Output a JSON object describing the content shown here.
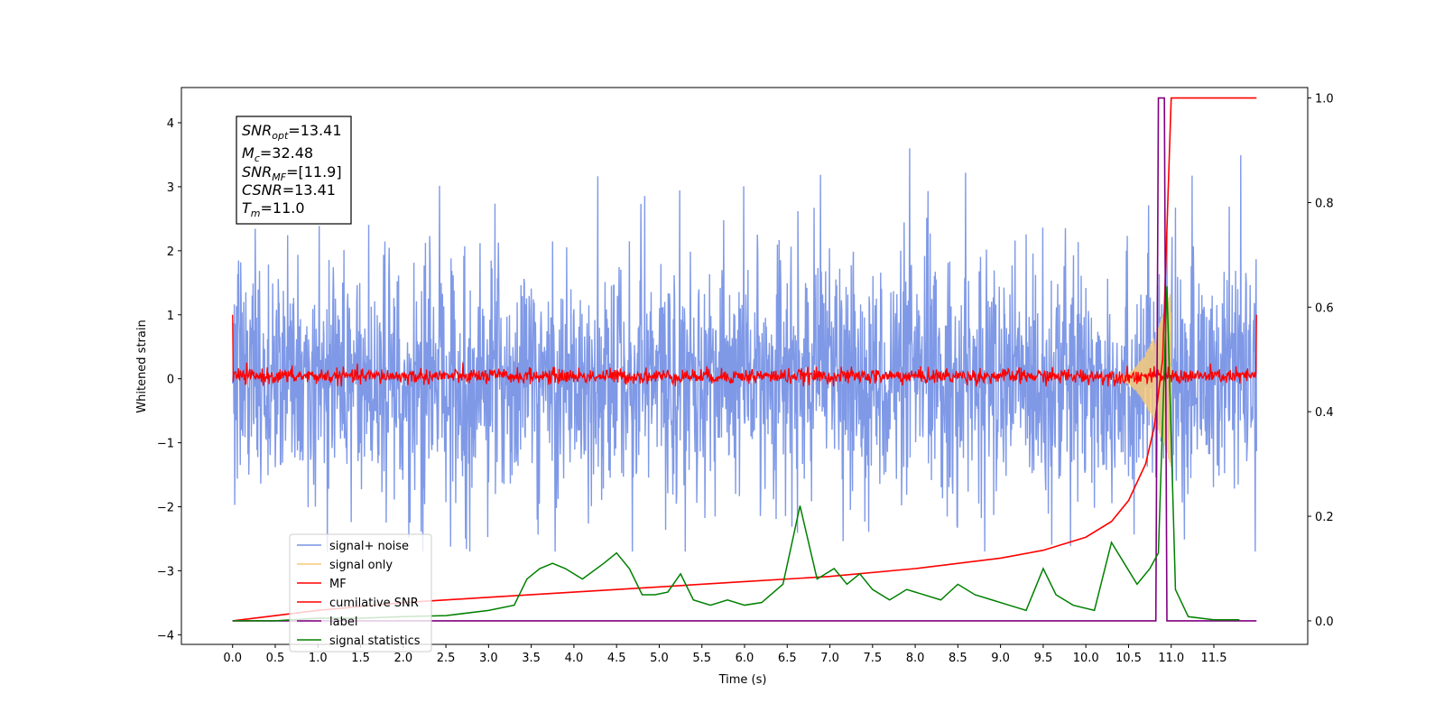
{
  "chart_data": {
    "type": "line",
    "title": "",
    "xlabel": "Time (s)",
    "ylabel": "Whitened strain",
    "xlim": [
      -0.6,
      12.6
    ],
    "ylim": [
      -4.15,
      4.55
    ],
    "y2lim": [
      -0.045,
      1.02
    ],
    "grid": false,
    "legend_position": "bottom-left",
    "x_ticks": [
      "0.0",
      "0.5",
      "1.0",
      "1.5",
      "2.0",
      "2.5",
      "3.0",
      "3.5",
      "4.0",
      "4.5",
      "5.0",
      "5.5",
      "6.0",
      "6.5",
      "7.0",
      "7.5",
      "8.0",
      "8.5",
      "9.0",
      "9.5",
      "10.0",
      "10.5",
      "11.0",
      "11.5"
    ],
    "y_ticks": [
      "4",
      "3",
      "2",
      "1",
      "0",
      "−1",
      "−2",
      "−3",
      "−4"
    ],
    "y2_ticks": [
      "1.0",
      "0.8",
      "0.6",
      "0.4",
      "0.2",
      "0.0"
    ],
    "y_tick_values": [
      4,
      3,
      2,
      1,
      0,
      -1,
      -2,
      -3,
      -4
    ],
    "y2_tick_values": [
      1.0,
      0.8,
      0.6,
      0.4,
      0.2,
      0.0
    ],
    "annotation": {
      "snr_opt": "=13.41",
      "mc": "=32.48",
      "snr_mf": "=[11.9]",
      "csnr": "=13.41",
      "tm": "=11.0"
    },
    "series": [
      {
        "name": "signal+ noise",
        "color": "#7893e6",
        "axis": "left",
        "t_range": [
          0.0,
          12.0
        ],
        "approx_envelope": [
          -2.7,
          3.6
        ]
      },
      {
        "name": "signal only",
        "color": "#f5c97a",
        "axis": "left",
        "t_range": [
          10.3,
          11.0
        ],
        "peak_amplitude": 1.4
      },
      {
        "name": "MF",
        "color": "#ff0000",
        "axis": "left",
        "t_range": [
          0.0,
          12.0
        ],
        "approx_envelope": [
          -0.1,
          0.2
        ]
      },
      {
        "name": "cumilative SNR",
        "color": "#ff0000",
        "axis": "right",
        "x": [
          0.0,
          1.0,
          2.0,
          3.0,
          4.0,
          5.0,
          6.0,
          7.0,
          8.0,
          9.0,
          9.5,
          10.0,
          10.3,
          10.5,
          10.7,
          10.8,
          10.9,
          10.95,
          11.0,
          12.0
        ],
        "y": [
          0.0,
          0.02,
          0.035,
          0.045,
          0.055,
          0.065,
          0.075,
          0.085,
          0.1,
          0.12,
          0.135,
          0.16,
          0.19,
          0.23,
          0.3,
          0.37,
          0.5,
          0.75,
          1.0,
          1.0
        ]
      },
      {
        "name": "label",
        "color": "#800080",
        "axis": "right",
        "x": [
          0.0,
          10.82,
          10.85,
          10.92,
          10.95,
          12.0
        ],
        "y": [
          0.0,
          0.0,
          1.0,
          1.0,
          0.0,
          0.0
        ]
      },
      {
        "name": "signal statistics",
        "color": "#008000",
        "axis": "right",
        "x": [
          0.0,
          0.5,
          1.0,
          1.5,
          2.0,
          2.5,
          3.0,
          3.3,
          3.45,
          3.6,
          3.75,
          3.9,
          4.1,
          4.35,
          4.5,
          4.65,
          4.8,
          4.95,
          5.1,
          5.25,
          5.4,
          5.6,
          5.8,
          6.0,
          6.2,
          6.45,
          6.65,
          6.85,
          7.05,
          7.2,
          7.35,
          7.5,
          7.7,
          7.9,
          8.1,
          8.3,
          8.5,
          8.7,
          8.9,
          9.1,
          9.3,
          9.5,
          9.65,
          9.85,
          10.1,
          10.3,
          10.45,
          10.6,
          10.75,
          10.85,
          10.95,
          11.05,
          11.2,
          11.5,
          11.8
        ],
        "y": [
          0.0,
          0.0,
          0.005,
          0.005,
          0.008,
          0.01,
          0.02,
          0.03,
          0.08,
          0.1,
          0.11,
          0.1,
          0.08,
          0.11,
          0.13,
          0.1,
          0.05,
          0.05,
          0.055,
          0.09,
          0.04,
          0.03,
          0.04,
          0.03,
          0.035,
          0.07,
          0.22,
          0.08,
          0.1,
          0.07,
          0.09,
          0.06,
          0.04,
          0.06,
          0.05,
          0.04,
          0.07,
          0.05,
          0.04,
          0.03,
          0.02,
          0.1,
          0.05,
          0.03,
          0.02,
          0.15,
          0.11,
          0.07,
          0.1,
          0.13,
          0.64,
          0.06,
          0.008,
          0.002,
          0.002
        ]
      }
    ]
  }
}
